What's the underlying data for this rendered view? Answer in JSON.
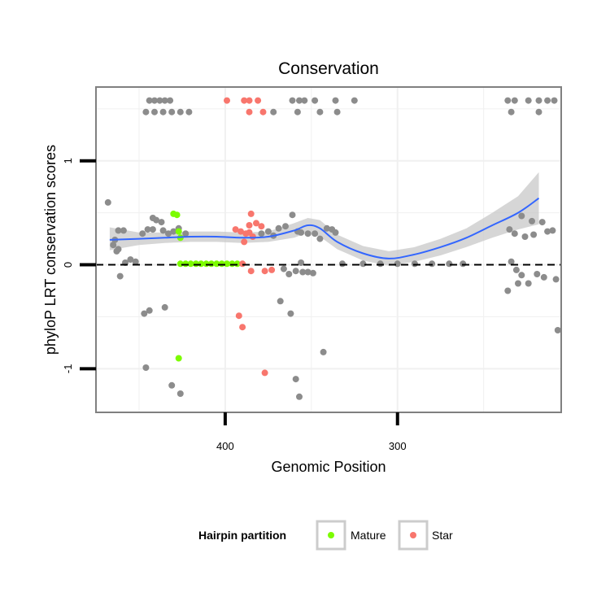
{
  "chart_data": {
    "type": "scatter",
    "title": "Conservation",
    "xlabel": "Genomic Position",
    "ylabel": "phyloP LRT conservation scores",
    "x_reversed": true,
    "xlim": [
      475,
      205
    ],
    "ylim": [
      -1.42,
      1.71
    ],
    "x_ticks": [
      400,
      300
    ],
    "y_ticks": [
      -1,
      0,
      1
    ],
    "grid": true,
    "reference_line": {
      "y": 0,
      "style": "dashed",
      "color": "#000000"
    },
    "legend": {
      "title": "Hairpin partition",
      "position": "bottom",
      "entries": [
        {
          "label": "Mature",
          "color": "#7CFC00"
        },
        {
          "label": "Star",
          "color": "#F8766D"
        }
      ]
    },
    "colors": {
      "other": "#8C8C8C",
      "Mature": "#7CFC00",
      "Star": "#F8766D",
      "smooth_line": "#3366FF",
      "ribbon": "#C8C8C8",
      "panel_border": "#808080",
      "grid": "#F0F0F0"
    },
    "smooth": {
      "x": [
        467,
        450,
        435,
        420,
        405,
        390,
        375,
        360,
        352,
        345,
        335,
        320,
        305,
        290,
        275,
        260,
        245,
        230,
        218
      ],
      "y": [
        0.24,
        0.25,
        0.26,
        0.27,
        0.27,
        0.26,
        0.27,
        0.33,
        0.38,
        0.35,
        0.22,
        0.11,
        0.06,
        0.1,
        0.17,
        0.26,
        0.38,
        0.5,
        0.64
      ],
      "lower": [
        0.14,
        0.19,
        0.21,
        0.22,
        0.22,
        0.21,
        0.22,
        0.26,
        0.31,
        0.27,
        0.15,
        0.04,
        -0.01,
        0.03,
        0.09,
        0.17,
        0.26,
        0.34,
        0.39
      ],
      "upper": [
        0.36,
        0.31,
        0.31,
        0.32,
        0.32,
        0.31,
        0.32,
        0.4,
        0.45,
        0.43,
        0.29,
        0.18,
        0.13,
        0.17,
        0.25,
        0.35,
        0.5,
        0.66,
        0.89
      ]
    },
    "series": [
      {
        "name": "",
        "color": "#8C8C8C",
        "points": [
          [
            444,
            1.58
          ],
          [
            441,
            1.58
          ],
          [
            438,
            1.58
          ],
          [
            435,
            1.58
          ],
          [
            432,
            1.58
          ],
          [
            446,
            1.47
          ],
          [
            441,
            1.47
          ],
          [
            436,
            1.47
          ],
          [
            431,
            1.47
          ],
          [
            426,
            1.47
          ],
          [
            421,
            1.47
          ],
          [
            361,
            1.58
          ],
          [
            357,
            1.58
          ],
          [
            354,
            1.58
          ],
          [
            348,
            1.58
          ],
          [
            336,
            1.58
          ],
          [
            325,
            1.58
          ],
          [
            372,
            1.47
          ],
          [
            358,
            1.47
          ],
          [
            345,
            1.47
          ],
          [
            335,
            1.47
          ],
          [
            236,
            1.58
          ],
          [
            232,
            1.58
          ],
          [
            224,
            1.58
          ],
          [
            218,
            1.58
          ],
          [
            213,
            1.58
          ],
          [
            209,
            1.58
          ],
          [
            234,
            1.47
          ],
          [
            218,
            1.47
          ],
          [
            468,
            0.6
          ],
          [
            464,
            0.24
          ],
          [
            462,
            0.33
          ],
          [
            459,
            0.33
          ],
          [
            465,
            0.19
          ],
          [
            463,
            0.13
          ],
          [
            462,
            0.15
          ],
          [
            461,
            -0.11
          ],
          [
            458,
            0.02
          ],
          [
            455,
            0.05
          ],
          [
            452,
            0.03
          ],
          [
            448,
            0.3
          ],
          [
            442,
            0.45
          ],
          [
            440,
            0.43
          ],
          [
            437,
            0.41
          ],
          [
            445,
            0.34
          ],
          [
            442,
            0.34
          ],
          [
            436,
            0.33
          ],
          [
            433,
            0.3
          ],
          [
            430,
            0.32
          ],
          [
            427,
            0.35
          ],
          [
            423,
            0.3
          ],
          [
            447,
            -0.47
          ],
          [
            444,
            -0.44
          ],
          [
            435,
            -0.41
          ],
          [
            446,
            -0.99
          ],
          [
            431,
            -1.16
          ],
          [
            426,
            -1.24
          ],
          [
            379,
            0.3
          ],
          [
            375,
            0.32
          ],
          [
            372,
            0.28
          ],
          [
            369,
            0.35
          ],
          [
            365,
            0.37
          ],
          [
            361,
            0.48
          ],
          [
            358,
            0.32
          ],
          [
            356,
            0.31
          ],
          [
            352,
            0.3
          ],
          [
            348,
            0.3
          ],
          [
            345,
            0.25
          ],
          [
            341,
            0.35
          ],
          [
            338,
            0.34
          ],
          [
            336,
            0.31
          ],
          [
            366,
            -0.04
          ],
          [
            363,
            -0.09
          ],
          [
            359,
            -0.06
          ],
          [
            355,
            -0.07
          ],
          [
            352,
            -0.07
          ],
          [
            349,
            -0.08
          ],
          [
            356,
            0.02
          ],
          [
            368,
            -0.35
          ],
          [
            362,
            -0.47
          ],
          [
            359,
            -1.1
          ],
          [
            357,
            -1.27
          ],
          [
            343,
            -0.84
          ],
          [
            332,
            0.01
          ],
          [
            320,
            0.01
          ],
          [
            310,
            0.01
          ],
          [
            300,
            0.01
          ],
          [
            290,
            0.01
          ],
          [
            280,
            0.01
          ],
          [
            270,
            0.01
          ],
          [
            262,
            0.01
          ],
          [
            235,
            0.34
          ],
          [
            228,
            0.47
          ],
          [
            222,
            0.42
          ],
          [
            216,
            0.41
          ],
          [
            213,
            0.32
          ],
          [
            210,
            0.33
          ],
          [
            232,
            0.3
          ],
          [
            226,
            0.27
          ],
          [
            221,
            0.29
          ],
          [
            234,
            0.03
          ],
          [
            231,
            -0.05
          ],
          [
            228,
            -0.1
          ],
          [
            224,
            -0.18
          ],
          [
            219,
            -0.09
          ],
          [
            215,
            -0.12
          ],
          [
            208,
            -0.14
          ],
          [
            236,
            -0.25
          ],
          [
            230,
            -0.18
          ],
          [
            207,
            -0.63
          ]
        ]
      },
      {
        "name": "Mature",
        "color": "#7CFC00",
        "points": [
          [
            428,
            0.48
          ],
          [
            430,
            0.49
          ],
          [
            427,
            0.32
          ],
          [
            426,
            0.26
          ],
          [
            427,
            -0.9
          ],
          [
            426,
            0.01
          ],
          [
            423,
            0.01
          ],
          [
            420,
            0.01
          ],
          [
            417,
            0.01
          ],
          [
            414,
            0.01
          ],
          [
            411,
            0.01
          ],
          [
            408,
            0.01
          ],
          [
            405,
            0.01
          ],
          [
            402,
            0.01
          ],
          [
            399,
            0.01
          ],
          [
            396,
            0.01
          ],
          [
            393,
            0.01
          ]
        ]
      },
      {
        "name": "Star",
        "color": "#F8766D",
        "points": [
          [
            399,
            1.58
          ],
          [
            389,
            1.58
          ],
          [
            386,
            1.58
          ],
          [
            381,
            1.58
          ],
          [
            386,
            1.47
          ],
          [
            378,
            1.47
          ],
          [
            385,
            0.49
          ],
          [
            386,
            0.38
          ],
          [
            382,
            0.4
          ],
          [
            379,
            0.37
          ],
          [
            394,
            0.34
          ],
          [
            391,
            0.32
          ],
          [
            388,
            0.3
          ],
          [
            386,
            0.31
          ],
          [
            384,
            0.27
          ],
          [
            389,
            0.22
          ],
          [
            390,
            0.01
          ],
          [
            385,
            -0.06
          ],
          [
            377,
            -0.06
          ],
          [
            373,
            -0.05
          ],
          [
            392,
            -0.49
          ],
          [
            390,
            -0.6
          ],
          [
            377,
            -1.04
          ]
        ]
      }
    ]
  }
}
